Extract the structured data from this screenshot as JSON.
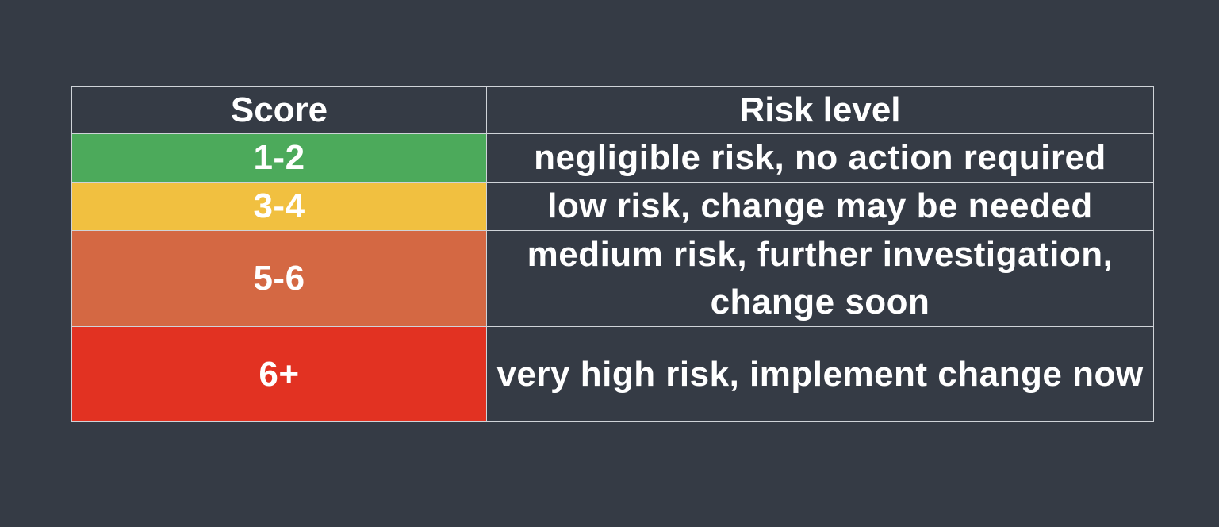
{
  "table": {
    "headers": {
      "score": "Score",
      "risk_level": "Risk level"
    },
    "rows": [
      {
        "score": "1-2",
        "level": "negligible risk, no action required",
        "color": "#4caa5b"
      },
      {
        "score": "3-4",
        "level": "low risk, change may be needed",
        "color": "#f1c040"
      },
      {
        "score": "5-6",
        "level": "medium risk, further investigation, change soon",
        "color": "#d46843"
      },
      {
        "score": "6+",
        "level": "very high risk, implement change now",
        "color": "#e23222"
      }
    ]
  },
  "colors": {
    "background": "#353b45",
    "border": "#cfd3d8",
    "text": "#ffffff"
  }
}
